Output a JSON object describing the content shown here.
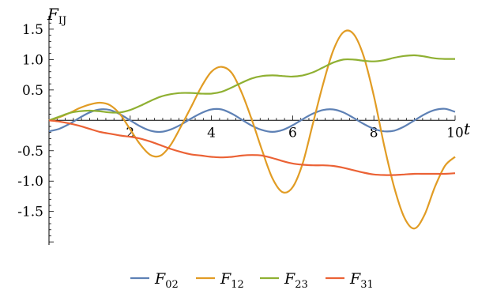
{
  "chart_data": {
    "type": "line",
    "xlabel": "t",
    "ylabel": {
      "main": "F",
      "sub": "IJ"
    },
    "xlim": [
      0,
      10
    ],
    "ylim": [
      -2.05,
      1.72
    ],
    "x_ticks": [
      2,
      4,
      6,
      8,
      10
    ],
    "x_tick_labels": [
      "2",
      "4",
      "6",
      "8",
      "10"
    ],
    "y_ticks": [
      -1.5,
      -1.0,
      -0.5,
      0.5,
      1.0,
      1.5
    ],
    "y_tick_labels": [
      "-1.5",
      "-1.0",
      "-0.5",
      "0.5",
      "1.0",
      "1.5"
    ],
    "grid": false,
    "legend_position": "bottom",
    "x": [
      0,
      0.25,
      0.5,
      0.75,
      1,
      1.25,
      1.5,
      1.75,
      2,
      2.25,
      2.5,
      2.75,
      3,
      3.25,
      3.5,
      3.75,
      4,
      4.25,
      4.5,
      4.75,
      5,
      5.25,
      5.5,
      5.75,
      6,
      6.25,
      6.5,
      6.75,
      7,
      7.25,
      7.5,
      7.75,
      8,
      8.25,
      8.5,
      8.75,
      9,
      9.25,
      9.5,
      9.75,
      10
    ],
    "series": [
      {
        "name": "F02",
        "label_main": "F",
        "label_sub": "02",
        "color": "#5E81B5",
        "values": [
          -0.18,
          -0.14,
          -0.06,
          0.04,
          0.13,
          0.18,
          0.17,
          0.1,
          0.0,
          -0.1,
          -0.17,
          -0.19,
          -0.15,
          -0.07,
          0.03,
          0.12,
          0.18,
          0.18,
          0.11,
          0.01,
          -0.09,
          -0.16,
          -0.19,
          -0.16,
          -0.08,
          0.02,
          0.11,
          0.17,
          0.18,
          0.13,
          0.04,
          -0.06,
          -0.14,
          -0.18,
          -0.17,
          -0.1,
          0.0,
          0.1,
          0.17,
          0.19,
          0.14
        ]
      },
      {
        "name": "F12",
        "label_main": "F",
        "label_sub": "12",
        "color": "#E19C24",
        "values": [
          0.0,
          0.05,
          0.12,
          0.2,
          0.26,
          0.29,
          0.25,
          0.1,
          -0.15,
          -0.4,
          -0.57,
          -0.58,
          -0.4,
          -0.1,
          0.22,
          0.55,
          0.8,
          0.88,
          0.78,
          0.45,
          0.0,
          -0.5,
          -0.95,
          -1.18,
          -1.1,
          -0.7,
          -0.05,
          0.6,
          1.15,
          1.45,
          1.42,
          1.05,
          0.4,
          -0.4,
          -1.1,
          -1.6,
          -1.78,
          -1.55,
          -1.1,
          -0.75,
          -0.6
        ]
      },
      {
        "name": "F23",
        "label_main": "F",
        "label_sub": "23",
        "color": "#8FB032",
        "values": [
          0.0,
          0.06,
          0.12,
          0.15,
          0.16,
          0.15,
          0.13,
          0.13,
          0.17,
          0.24,
          0.32,
          0.39,
          0.43,
          0.45,
          0.45,
          0.44,
          0.44,
          0.47,
          0.54,
          0.62,
          0.69,
          0.73,
          0.74,
          0.73,
          0.72,
          0.74,
          0.79,
          0.87,
          0.95,
          1.0,
          1.0,
          0.98,
          0.97,
          0.99,
          1.03,
          1.06,
          1.07,
          1.05,
          1.02,
          1.01,
          1.01
        ]
      },
      {
        "name": "F31",
        "label_main": "F",
        "label_sub": "31",
        "color": "#EB6235",
        "values": [
          0.0,
          -0.02,
          -0.05,
          -0.09,
          -0.14,
          -0.19,
          -0.22,
          -0.25,
          -0.27,
          -0.3,
          -0.35,
          -0.41,
          -0.47,
          -0.52,
          -0.56,
          -0.58,
          -0.6,
          -0.61,
          -0.6,
          -0.58,
          -0.57,
          -0.58,
          -0.62,
          -0.67,
          -0.71,
          -0.73,
          -0.74,
          -0.74,
          -0.75,
          -0.78,
          -0.82,
          -0.86,
          -0.89,
          -0.9,
          -0.9,
          -0.89,
          -0.88,
          -0.88,
          -0.88,
          -0.88,
          -0.87
        ]
      }
    ]
  }
}
